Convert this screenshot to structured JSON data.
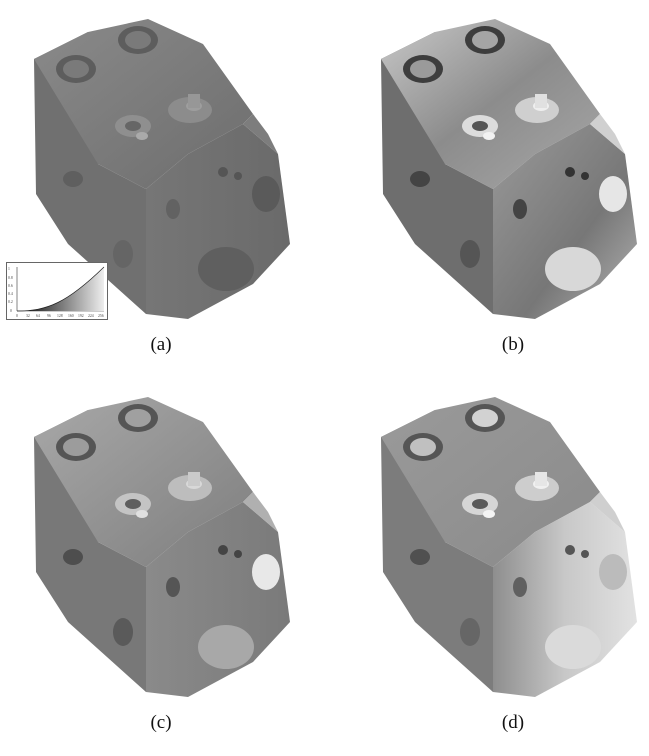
{
  "panels": [
    {
      "id": "a",
      "caption": "(a)",
      "tone": "flat"
    },
    {
      "id": "b",
      "caption": "(b)",
      "tone": "high-contrast"
    },
    {
      "id": "c",
      "caption": "(c)",
      "tone": "medium"
    },
    {
      "id": "d",
      "caption": "(d)",
      "tone": "bright"
    }
  ],
  "transfer_function_inset": {
    "y_ticks": [
      "1",
      "0.8",
      "0.6",
      "0.4",
      "0.2",
      "0"
    ],
    "x_ticks": [
      "0",
      "32",
      "64",
      "96",
      "128",
      "160",
      "192",
      "224",
      "256"
    ]
  },
  "colors": {
    "background": "#ffffff",
    "flat_gray": "#777777"
  }
}
